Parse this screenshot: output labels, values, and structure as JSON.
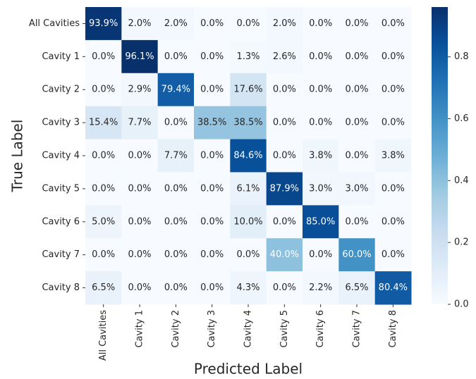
{
  "chart_data": {
    "type": "heatmap",
    "x_label": "Predicted Label",
    "y_label": "True Label",
    "x_categories": [
      "All Cavities",
      "Cavity 1",
      "Cavity 2",
      "Cavity 3",
      "Cavity 4",
      "Cavity 5",
      "Cavity 6",
      "Cavity 7",
      "Cavity 8"
    ],
    "y_categories": [
      "All Cavities",
      "Cavity 1",
      "Cavity 2",
      "Cavity 3",
      "Cavity 4",
      "Cavity 5",
      "Cavity 6",
      "Cavity 7",
      "Cavity 8"
    ],
    "values": [
      [
        0.939,
        0.02,
        0.02,
        0,
        0,
        0.02,
        0,
        0,
        0
      ],
      [
        0,
        0.961,
        0,
        0,
        0.013,
        0.026,
        0,
        0,
        0
      ],
      [
        0,
        0.029,
        0.794,
        0,
        0.176,
        0,
        0,
        0,
        0
      ],
      [
        0.154,
        0.077,
        0,
        0.385,
        0.385,
        0,
        0,
        0,
        0
      ],
      [
        0,
        0,
        0.077,
        0,
        0.846,
        0,
        0.038,
        0,
        0.038
      ],
      [
        0,
        0,
        0,
        0,
        0.061,
        0.879,
        0.03,
        0.03,
        0
      ],
      [
        0.05,
        0,
        0,
        0,
        0.1,
        0,
        0.85,
        0,
        0
      ],
      [
        0,
        0,
        0,
        0,
        0,
        0.4,
        0,
        0.6,
        0
      ],
      [
        0.065,
        0,
        0,
        0,
        0.043,
        0,
        0.022,
        0.065,
        0.804
      ]
    ],
    "value_labels": [
      [
        "93.9%",
        "2.0%",
        "2.0%",
        "0.0%",
        "0.0%",
        "2.0%",
        "0.0%",
        "0.0%",
        "0.0%"
      ],
      [
        "0.0%",
        "96.1%",
        "0.0%",
        "0.0%",
        "1.3%",
        "2.6%",
        "0.0%",
        "0.0%",
        "0.0%"
      ],
      [
        "0.0%",
        "2.9%",
        "79.4%",
        "0.0%",
        "17.6%",
        "0.0%",
        "0.0%",
        "0.0%",
        "0.0%"
      ],
      [
        "15.4%",
        "7.7%",
        "0.0%",
        "38.5%",
        "38.5%",
        "0.0%",
        "0.0%",
        "0.0%",
        "0.0%"
      ],
      [
        "0.0%",
        "0.0%",
        "7.7%",
        "0.0%",
        "84.6%",
        "0.0%",
        "3.8%",
        "0.0%",
        "3.8%"
      ],
      [
        "0.0%",
        "0.0%",
        "0.0%",
        "0.0%",
        "6.1%",
        "87.9%",
        "3.0%",
        "3.0%",
        "0.0%"
      ],
      [
        "5.0%",
        "0.0%",
        "0.0%",
        "0.0%",
        "10.0%",
        "0.0%",
        "85.0%",
        "0.0%",
        "0.0%"
      ],
      [
        "0.0%",
        "0.0%",
        "0.0%",
        "0.0%",
        "0.0%",
        "40.0%",
        "0.0%",
        "60.0%",
        "0.0%"
      ],
      [
        "6.5%",
        "0.0%",
        "0.0%",
        "0.0%",
        "4.3%",
        "0.0%",
        "2.2%",
        "6.5%",
        "80.4%"
      ]
    ],
    "colormap": "Blues",
    "clim": [
      0,
      0.961
    ],
    "cticks": [
      {
        "value": 0,
        "label": "0.0"
      },
      0.2,
      0.4,
      0.6,
      0.8
    ]
  }
}
